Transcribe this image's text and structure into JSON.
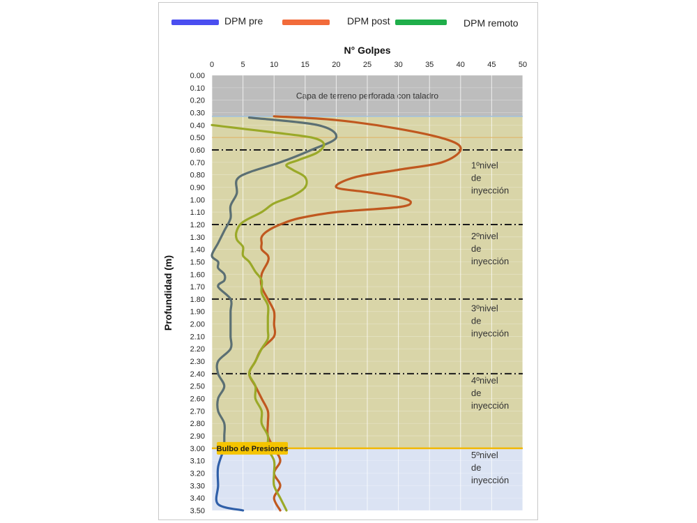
{
  "chart_data": {
    "type": "line",
    "title": "",
    "xlabel": "N° Golpes",
    "ylabel": "Profundidad  (m)",
    "xlim": [
      0,
      50
    ],
    "ylim": [
      0,
      3.5
    ],
    "y_inverted": true,
    "x_axis_position": "top",
    "x_ticks": [
      "0",
      "5",
      "10",
      "15",
      "20",
      "25",
      "30",
      "35",
      "40",
      "45",
      "50"
    ],
    "y_ticks": [
      "0.00",
      "0.10",
      "0.20",
      "0.30",
      "0.40",
      "0.50",
      "0.60",
      "0.70",
      "0.80",
      "0.90",
      "1.00",
      "1.10",
      "1.20",
      "1.30",
      "1.40",
      "1.50",
      "1.60",
      "1.70",
      "1.80",
      "1.90",
      "2.00",
      "2.10",
      "2.20",
      "2.30",
      "2.40",
      "2.50",
      "2.60",
      "2.70",
      "2.80",
      "2.90",
      "3.00",
      "3.10",
      "3.20",
      "3.30",
      "3.40",
      "3.50"
    ],
    "grid": true,
    "legend_position": "top",
    "series": [
      {
        "name": "DPM pre",
        "color": "#5b6f73",
        "legend_color": "#4a4ef0",
        "points": [
          [
            6,
            0.34
          ],
          [
            17,
            0.4
          ],
          [
            20,
            0.5
          ],
          [
            16,
            0.6
          ],
          [
            11,
            0.7
          ],
          [
            6,
            0.78
          ],
          [
            4,
            0.84
          ],
          [
            4,
            0.95
          ],
          [
            3,
            1.05
          ],
          [
            3,
            1.15
          ],
          [
            2,
            1.25
          ],
          [
            1,
            1.35
          ],
          [
            0,
            1.45
          ],
          [
            1,
            1.5
          ],
          [
            1,
            1.55
          ],
          [
            2,
            1.6
          ],
          [
            2,
            1.65
          ],
          [
            1,
            1.7
          ],
          [
            3,
            1.8
          ],
          [
            3,
            1.9
          ],
          [
            3,
            2.0
          ],
          [
            3,
            2.1
          ],
          [
            3,
            2.2
          ],
          [
            1,
            2.3
          ],
          [
            1,
            2.4
          ],
          [
            2,
            2.5
          ],
          [
            1,
            2.6
          ],
          [
            1,
            2.7
          ],
          [
            2,
            2.8
          ],
          [
            2,
            2.9
          ],
          [
            2,
            3.0
          ]
        ]
      },
      {
        "name": "DPM post",
        "color": "#c0581f",
        "legend_color": "#f26b3a",
        "points": [
          [
            10,
            0.33
          ],
          [
            20,
            0.36
          ],
          [
            30,
            0.43
          ],
          [
            38,
            0.52
          ],
          [
            40,
            0.6
          ],
          [
            37,
            0.7
          ],
          [
            30,
            0.76
          ],
          [
            23,
            0.82
          ],
          [
            20,
            0.9
          ],
          [
            25,
            0.94
          ],
          [
            30,
            0.98
          ],
          [
            32,
            1.02
          ],
          [
            30,
            1.06
          ],
          [
            20,
            1.1
          ],
          [
            14,
            1.15
          ],
          [
            11,
            1.2
          ],
          [
            9,
            1.25
          ],
          [
            8,
            1.3
          ],
          [
            8,
            1.35
          ],
          [
            8,
            1.4
          ],
          [
            9,
            1.45
          ],
          [
            9,
            1.5
          ],
          [
            8,
            1.6
          ],
          [
            8,
            1.7
          ],
          [
            9,
            1.8
          ],
          [
            10,
            1.9
          ],
          [
            10,
            2.0
          ],
          [
            10,
            2.1
          ],
          [
            8,
            2.2
          ],
          [
            7,
            2.3
          ],
          [
            6,
            2.4
          ],
          [
            7,
            2.5
          ],
          [
            8,
            2.6
          ],
          [
            9,
            2.7
          ],
          [
            9,
            2.8
          ],
          [
            9,
            2.9
          ],
          [
            10,
            3.0
          ],
          [
            11,
            3.1
          ],
          [
            10,
            3.2
          ],
          [
            11,
            3.3
          ],
          [
            10,
            3.4
          ],
          [
            11,
            3.5
          ]
        ]
      },
      {
        "name": "DPM remoto",
        "color": "#9aa928",
        "legend_color": "#1fae4a",
        "points": [
          [
            0,
            0.4
          ],
          [
            5,
            0.43
          ],
          [
            10,
            0.46
          ],
          [
            16,
            0.5
          ],
          [
            18,
            0.55
          ],
          [
            17,
            0.62
          ],
          [
            14,
            0.68
          ],
          [
            12,
            0.72
          ],
          [
            13,
            0.76
          ],
          [
            15,
            0.82
          ],
          [
            15,
            0.9
          ],
          [
            13,
            0.97
          ],
          [
            10,
            1.03
          ],
          [
            8,
            1.1
          ],
          [
            5,
            1.18
          ],
          [
            4,
            1.25
          ],
          [
            4,
            1.32
          ],
          [
            5,
            1.38
          ],
          [
            5,
            1.45
          ],
          [
            6,
            1.5
          ],
          [
            7,
            1.58
          ],
          [
            8,
            1.65
          ],
          [
            8,
            1.75
          ],
          [
            9,
            1.85
          ],
          [
            9,
            1.95
          ],
          [
            9,
            2.05
          ],
          [
            9,
            2.12
          ],
          [
            8,
            2.2
          ],
          [
            7,
            2.3
          ],
          [
            6,
            2.4
          ],
          [
            7,
            2.5
          ],
          [
            7,
            2.6
          ],
          [
            8,
            2.7
          ],
          [
            8,
            2.8
          ],
          [
            9,
            2.9
          ],
          [
            9,
            3.0
          ],
          [
            10,
            3.1
          ],
          [
            10,
            3.2
          ],
          [
            10,
            3.3
          ],
          [
            11,
            3.4
          ],
          [
            12,
            3.5
          ]
        ]
      }
    ],
    "zones": {
      "drilled_layer": {
        "label": "Capa de terreno perforada con taladro",
        "from": 0.0,
        "to": 0.33,
        "color": "#bdbdbd"
      },
      "injection_zone": {
        "from": 0.33,
        "to": 3.0,
        "color": "#d9d5a8"
      },
      "bulb_zone": {
        "from": 3.0,
        "to": 3.5,
        "color": "#dbe3f3"
      }
    },
    "bulb_label": "Bulbo de Presiones",
    "level_lines": [
      0.6,
      1.2,
      1.8,
      2.4
    ],
    "bulb_line": 3.0,
    "injection_levels": [
      {
        "lines": [
          "1ºnivel",
          "de",
          "inyección"
        ],
        "depth": 0.85
      },
      {
        "lines": [
          "2ºnivel",
          "de",
          "inyección"
        ],
        "depth": 1.42
      },
      {
        "lines": [
          "3ºnivel",
          "de",
          "inyección"
        ],
        "depth": 2.0
      },
      {
        "lines": [
          "4ºnivel",
          "de",
          "inyección"
        ],
        "depth": 2.58
      },
      {
        "lines": [
          "5ºnivel",
          "de",
          "inyección"
        ],
        "depth": 3.18
      }
    ]
  }
}
